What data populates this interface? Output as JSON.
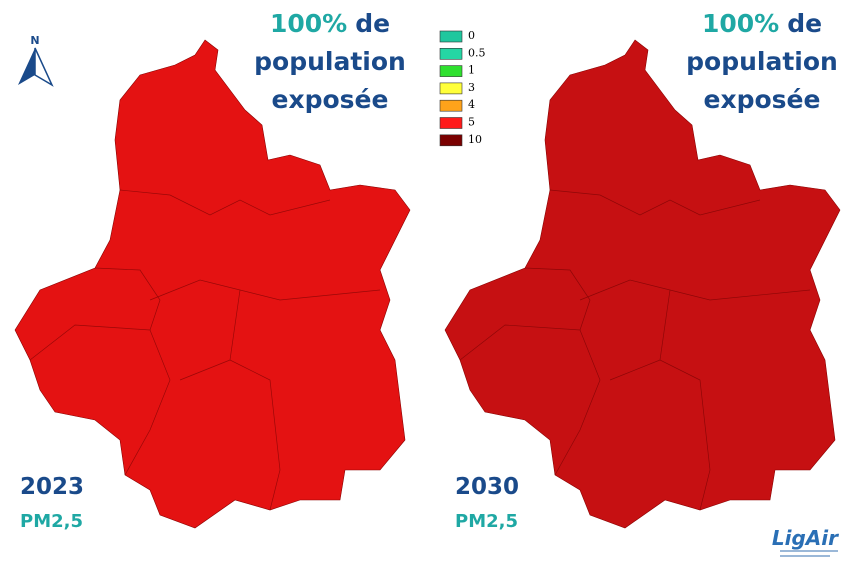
{
  "north": "N",
  "headline": {
    "highlight": "100%",
    "line1": "de",
    "line2": "population",
    "line3": "exposée"
  },
  "legend": {
    "items": [
      {
        "label": 0,
        "color": "#1fc79e"
      },
      {
        "label": 0.5,
        "color": "#25d6a4"
      },
      {
        "label": 1,
        "color": "#2ee02e"
      },
      {
        "label": 3,
        "color": "#ffff3a"
      },
      {
        "label": 4,
        "color": "#ffa31a"
      },
      {
        "label": 5,
        "color": "#ff1a1a"
      },
      {
        "label": 10,
        "color": "#7a0000"
      }
    ]
  },
  "panels": [
    {
      "year": "2023",
      "pollutant": "PM2,5",
      "fill": "#e41212"
    },
    {
      "year": "2030",
      "pollutant": "PM2,5",
      "fill": "#c61012"
    }
  ],
  "logo": "LigAir"
}
